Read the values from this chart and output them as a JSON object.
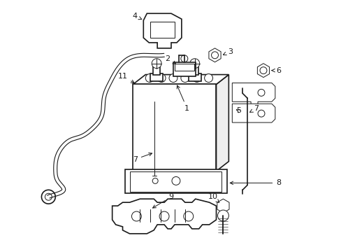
{
  "background_color": "#ffffff",
  "line_color": "#1a1a1a",
  "lw": 1.2,
  "tlw": 0.7,
  "label_fs": 8,
  "fig_width": 4.89,
  "fig_height": 3.6,
  "dpi": 100
}
